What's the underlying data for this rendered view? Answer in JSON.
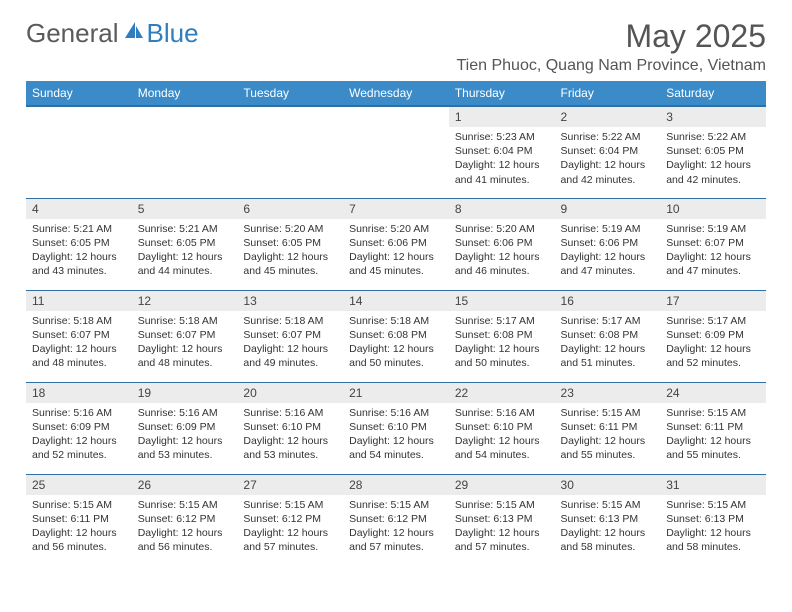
{
  "brand": {
    "name_part1": "General",
    "name_part2": "Blue",
    "color_gray": "#6b6b6b",
    "color_blue": "#2f7ec0"
  },
  "title": "May 2025",
  "location": "Tien Phuoc, Quang Nam Province, Vietnam",
  "header_bg": "#3b8bc9",
  "header_border": "#2f6fa3",
  "daynum_bg": "#ececec",
  "weekdays": [
    "Sunday",
    "Monday",
    "Tuesday",
    "Wednesday",
    "Thursday",
    "Friday",
    "Saturday"
  ],
  "weeks": [
    [
      {
        "n": "",
        "sr": "",
        "ss": "",
        "dl": ""
      },
      {
        "n": "",
        "sr": "",
        "ss": "",
        "dl": ""
      },
      {
        "n": "",
        "sr": "",
        "ss": "",
        "dl": ""
      },
      {
        "n": "",
        "sr": "",
        "ss": "",
        "dl": ""
      },
      {
        "n": "1",
        "sr": "Sunrise: 5:23 AM",
        "ss": "Sunset: 6:04 PM",
        "dl": "Daylight: 12 hours and 41 minutes."
      },
      {
        "n": "2",
        "sr": "Sunrise: 5:22 AM",
        "ss": "Sunset: 6:04 PM",
        "dl": "Daylight: 12 hours and 42 minutes."
      },
      {
        "n": "3",
        "sr": "Sunrise: 5:22 AM",
        "ss": "Sunset: 6:05 PM",
        "dl": "Daylight: 12 hours and 42 minutes."
      }
    ],
    [
      {
        "n": "4",
        "sr": "Sunrise: 5:21 AM",
        "ss": "Sunset: 6:05 PM",
        "dl": "Daylight: 12 hours and 43 minutes."
      },
      {
        "n": "5",
        "sr": "Sunrise: 5:21 AM",
        "ss": "Sunset: 6:05 PM",
        "dl": "Daylight: 12 hours and 44 minutes."
      },
      {
        "n": "6",
        "sr": "Sunrise: 5:20 AM",
        "ss": "Sunset: 6:05 PM",
        "dl": "Daylight: 12 hours and 45 minutes."
      },
      {
        "n": "7",
        "sr": "Sunrise: 5:20 AM",
        "ss": "Sunset: 6:06 PM",
        "dl": "Daylight: 12 hours and 45 minutes."
      },
      {
        "n": "8",
        "sr": "Sunrise: 5:20 AM",
        "ss": "Sunset: 6:06 PM",
        "dl": "Daylight: 12 hours and 46 minutes."
      },
      {
        "n": "9",
        "sr": "Sunrise: 5:19 AM",
        "ss": "Sunset: 6:06 PM",
        "dl": "Daylight: 12 hours and 47 minutes."
      },
      {
        "n": "10",
        "sr": "Sunrise: 5:19 AM",
        "ss": "Sunset: 6:07 PM",
        "dl": "Daylight: 12 hours and 47 minutes."
      }
    ],
    [
      {
        "n": "11",
        "sr": "Sunrise: 5:18 AM",
        "ss": "Sunset: 6:07 PM",
        "dl": "Daylight: 12 hours and 48 minutes."
      },
      {
        "n": "12",
        "sr": "Sunrise: 5:18 AM",
        "ss": "Sunset: 6:07 PM",
        "dl": "Daylight: 12 hours and 48 minutes."
      },
      {
        "n": "13",
        "sr": "Sunrise: 5:18 AM",
        "ss": "Sunset: 6:07 PM",
        "dl": "Daylight: 12 hours and 49 minutes."
      },
      {
        "n": "14",
        "sr": "Sunrise: 5:18 AM",
        "ss": "Sunset: 6:08 PM",
        "dl": "Daylight: 12 hours and 50 minutes."
      },
      {
        "n": "15",
        "sr": "Sunrise: 5:17 AM",
        "ss": "Sunset: 6:08 PM",
        "dl": "Daylight: 12 hours and 50 minutes."
      },
      {
        "n": "16",
        "sr": "Sunrise: 5:17 AM",
        "ss": "Sunset: 6:08 PM",
        "dl": "Daylight: 12 hours and 51 minutes."
      },
      {
        "n": "17",
        "sr": "Sunrise: 5:17 AM",
        "ss": "Sunset: 6:09 PM",
        "dl": "Daylight: 12 hours and 52 minutes."
      }
    ],
    [
      {
        "n": "18",
        "sr": "Sunrise: 5:16 AM",
        "ss": "Sunset: 6:09 PM",
        "dl": "Daylight: 12 hours and 52 minutes."
      },
      {
        "n": "19",
        "sr": "Sunrise: 5:16 AM",
        "ss": "Sunset: 6:09 PM",
        "dl": "Daylight: 12 hours and 53 minutes."
      },
      {
        "n": "20",
        "sr": "Sunrise: 5:16 AM",
        "ss": "Sunset: 6:10 PM",
        "dl": "Daylight: 12 hours and 53 minutes."
      },
      {
        "n": "21",
        "sr": "Sunrise: 5:16 AM",
        "ss": "Sunset: 6:10 PM",
        "dl": "Daylight: 12 hours and 54 minutes."
      },
      {
        "n": "22",
        "sr": "Sunrise: 5:16 AM",
        "ss": "Sunset: 6:10 PM",
        "dl": "Daylight: 12 hours and 54 minutes."
      },
      {
        "n": "23",
        "sr": "Sunrise: 5:15 AM",
        "ss": "Sunset: 6:11 PM",
        "dl": "Daylight: 12 hours and 55 minutes."
      },
      {
        "n": "24",
        "sr": "Sunrise: 5:15 AM",
        "ss": "Sunset: 6:11 PM",
        "dl": "Daylight: 12 hours and 55 minutes."
      }
    ],
    [
      {
        "n": "25",
        "sr": "Sunrise: 5:15 AM",
        "ss": "Sunset: 6:11 PM",
        "dl": "Daylight: 12 hours and 56 minutes."
      },
      {
        "n": "26",
        "sr": "Sunrise: 5:15 AM",
        "ss": "Sunset: 6:12 PM",
        "dl": "Daylight: 12 hours and 56 minutes."
      },
      {
        "n": "27",
        "sr": "Sunrise: 5:15 AM",
        "ss": "Sunset: 6:12 PM",
        "dl": "Daylight: 12 hours and 57 minutes."
      },
      {
        "n": "28",
        "sr": "Sunrise: 5:15 AM",
        "ss": "Sunset: 6:12 PM",
        "dl": "Daylight: 12 hours and 57 minutes."
      },
      {
        "n": "29",
        "sr": "Sunrise: 5:15 AM",
        "ss": "Sunset: 6:13 PM",
        "dl": "Daylight: 12 hours and 57 minutes."
      },
      {
        "n": "30",
        "sr": "Sunrise: 5:15 AM",
        "ss": "Sunset: 6:13 PM",
        "dl": "Daylight: 12 hours and 58 minutes."
      },
      {
        "n": "31",
        "sr": "Sunrise: 5:15 AM",
        "ss": "Sunset: 6:13 PM",
        "dl": "Daylight: 12 hours and 58 minutes."
      }
    ]
  ]
}
